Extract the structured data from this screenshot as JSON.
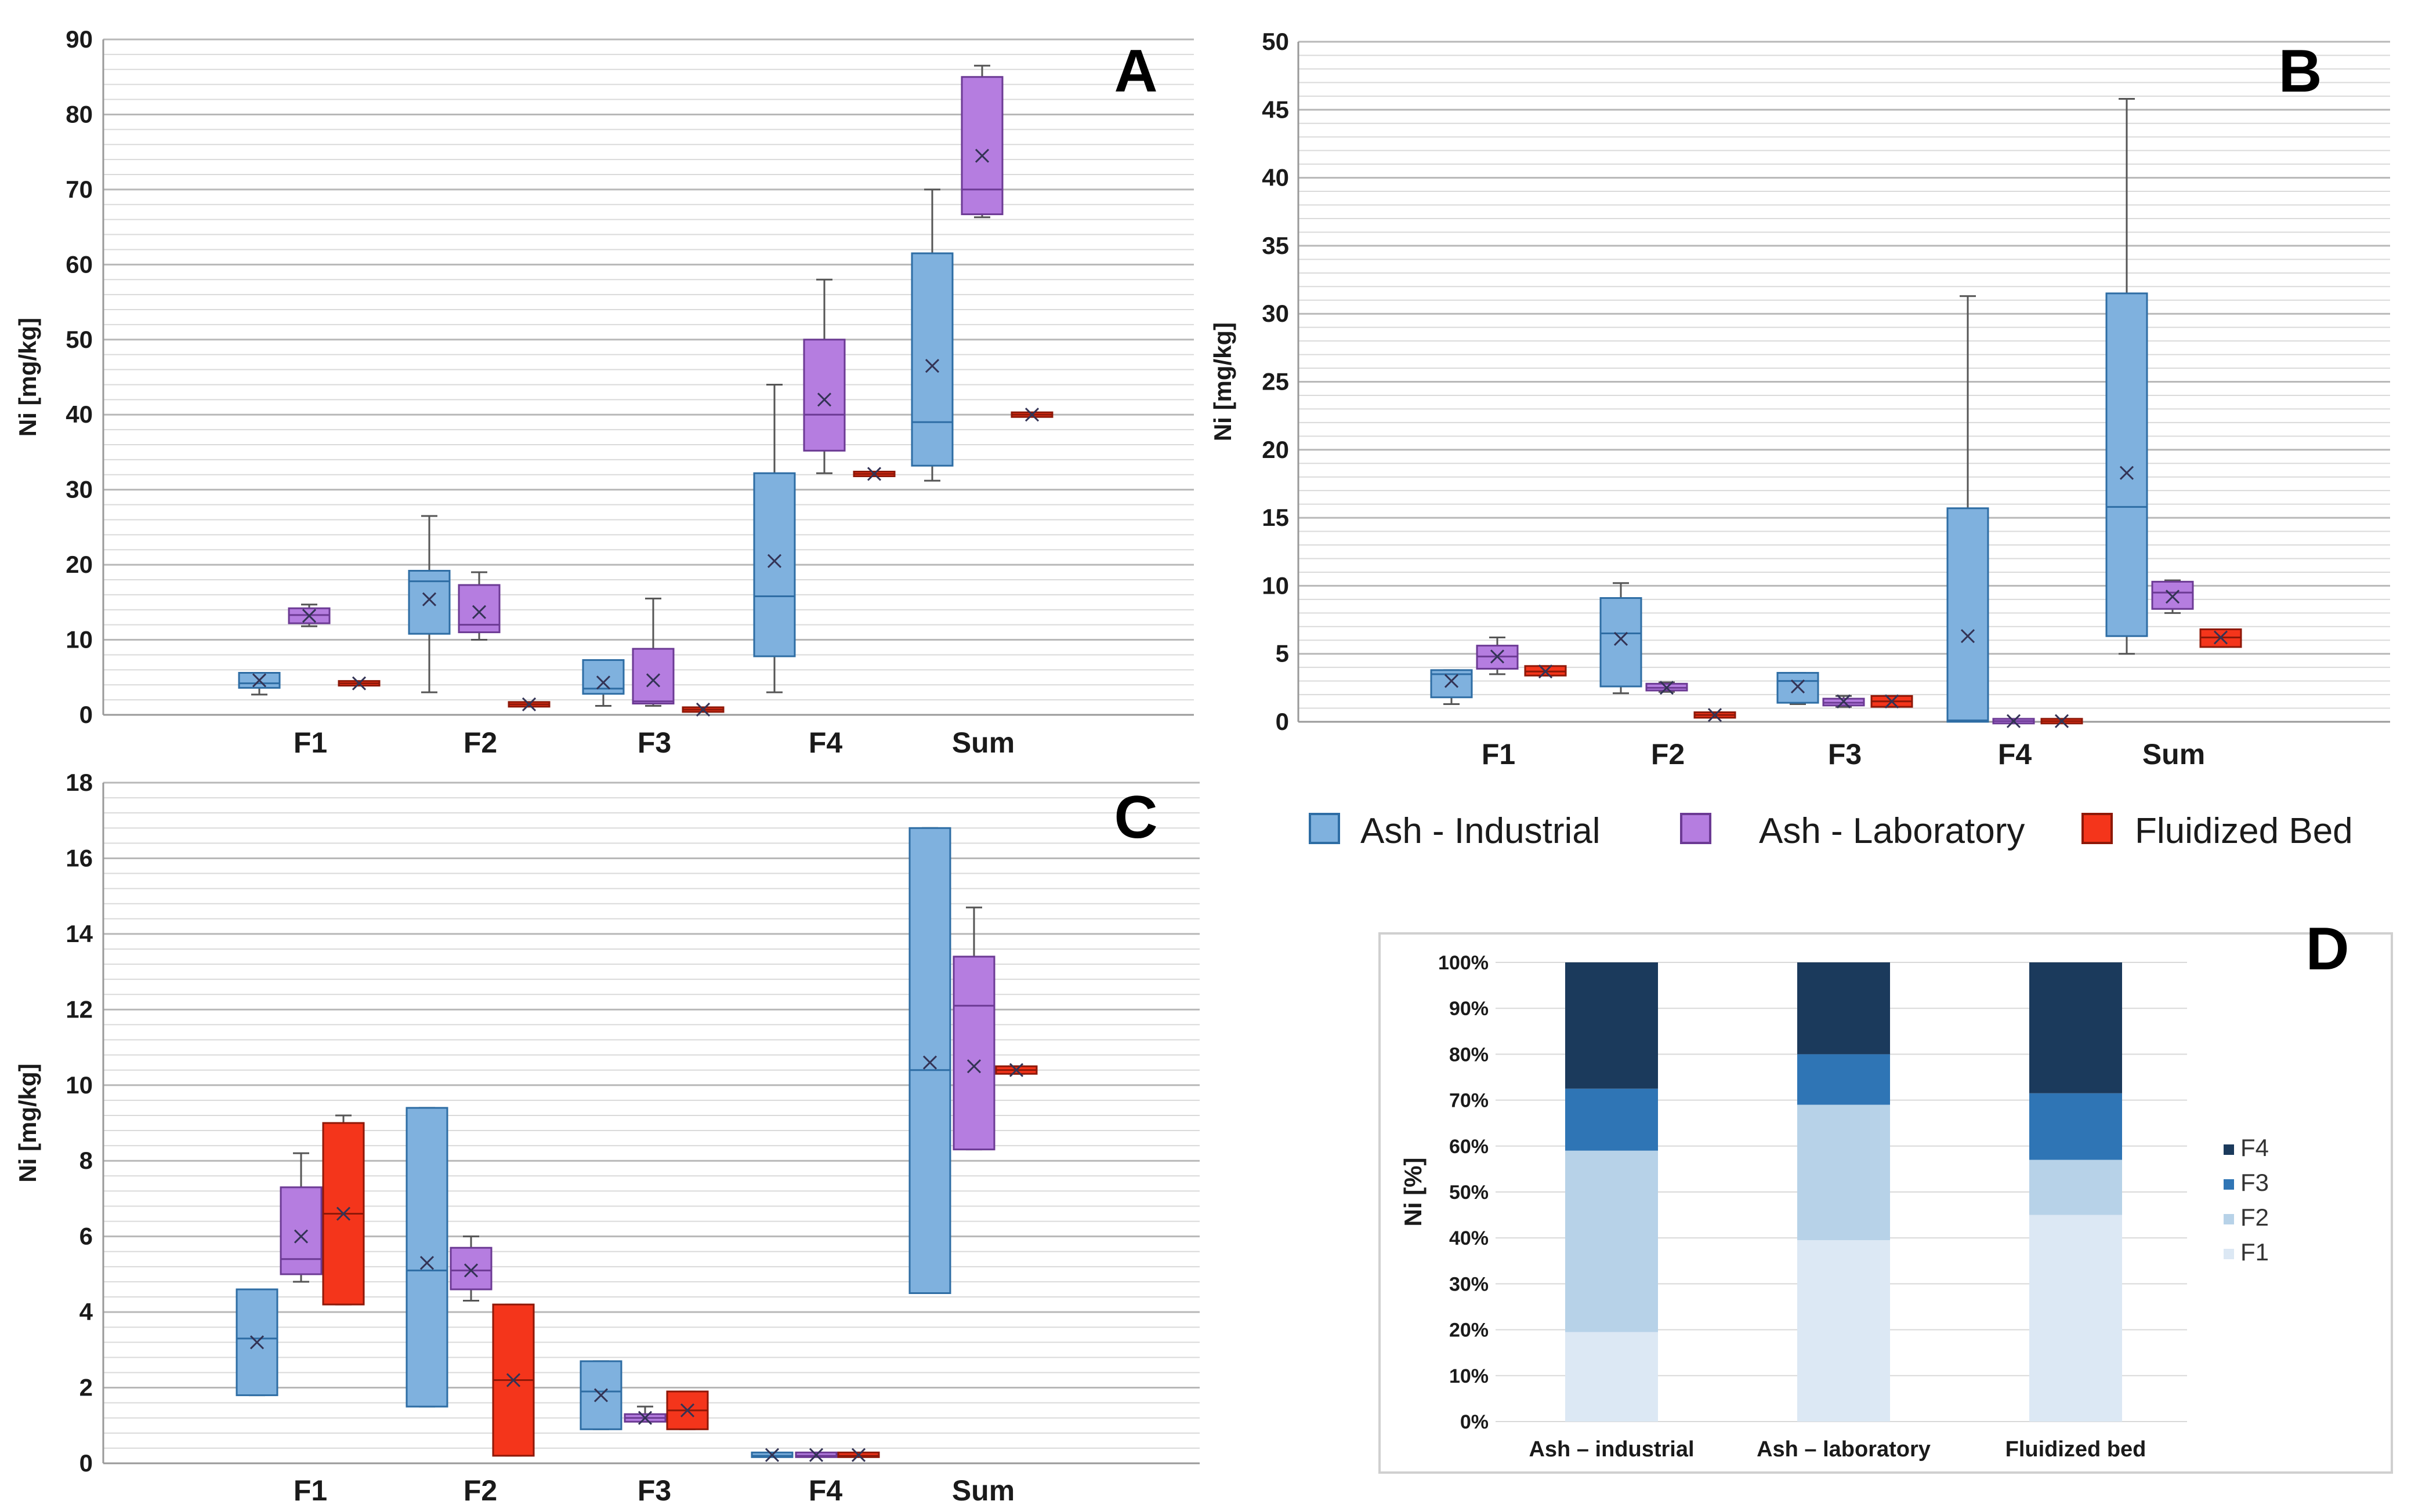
{
  "series_names": [
    "Ash - Industrial",
    "Ash - Laboratory",
    "Fluidized Bed"
  ],
  "colors": {
    "industrial_fill": "#7fb1de",
    "industrial_stroke": "#2e6da4",
    "laboratory_fill": "#b57de0",
    "laboratory_stroke": "#6c3a94",
    "fluidized_fill": "#f4351b",
    "fluidized_stroke": "#8e1808",
    "grid_major": "#b8b8b8",
    "grid_minor": "#dadada",
    "axis": "#999999",
    "f4": "#1b3a5c",
    "f3": "#2f75b5",
    "f2": "#b7d2e8",
    "f1": "#dce8f4"
  },
  "chart_data": [
    {
      "id": "A",
      "type": "box",
      "letter": "A",
      "ylabel": "Ni [mg/kg]",
      "ylim": [
        0,
        90
      ],
      "ymajor": 10,
      "yminor": 2,
      "categories": [
        "F1",
        "F2",
        "F3",
        "F4",
        "Sum"
      ],
      "series": [
        {
          "name": "Ash - Industrial",
          "boxes": [
            {
              "min": 2.7,
              "q1": 3.6,
              "median": 4.2,
              "q3": 5.6,
              "max": 5.6,
              "mean": 4.6
            },
            {
              "min": 3.0,
              "q1": 10.8,
              "median": 17.8,
              "q3": 19.2,
              "max": 26.5,
              "mean": 15.4
            },
            {
              "min": 1.2,
              "q1": 2.8,
              "median": 3.5,
              "q3": 7.3,
              "max": 7.3,
              "mean": 4.3
            },
            {
              "min": 3.0,
              "q1": 7.8,
              "median": 15.8,
              "q3": 32.2,
              "max": 44.0,
              "mean": 20.5
            },
            {
              "min": 31.2,
              "q1": 33.2,
              "median": 39.0,
              "q3": 61.5,
              "max": 70.0,
              "mean": 46.5
            }
          ]
        },
        {
          "name": "Ash - Laboratory",
          "boxes": [
            {
              "min": 11.8,
              "q1": 12.2,
              "median": 13.3,
              "q3": 14.2,
              "max": 14.7,
              "mean": 13.2
            },
            {
              "min": 10.0,
              "q1": 11.0,
              "median": 12.0,
              "q3": 17.3,
              "max": 19.0,
              "mean": 13.7
            },
            {
              "min": 1.2,
              "q1": 1.5,
              "median": 1.8,
              "q3": 8.8,
              "max": 15.5,
              "mean": 4.6
            },
            {
              "min": 32.2,
              "q1": 35.2,
              "median": 40.0,
              "q3": 50.0,
              "max": 58.0,
              "mean": 42.0
            },
            {
              "min": 66.3,
              "q1": 66.7,
              "median": 70.0,
              "q3": 85.0,
              "max": 86.5,
              "mean": 74.5
            }
          ]
        },
        {
          "name": "Fluidized Bed",
          "boxes": [
            {
              "min": 4.1,
              "q1": 4.1,
              "median": 4.2,
              "q3": 4.3,
              "max": 4.3,
              "mean": 4.2
            },
            {
              "min": 1.3,
              "q1": 1.3,
              "median": 1.4,
              "q3": 1.5,
              "max": 1.5,
              "mean": 1.4
            },
            {
              "min": 0.6,
              "q1": 0.6,
              "median": 0.7,
              "q3": 0.8,
              "max": 0.8,
              "mean": 0.7
            },
            {
              "min": 31.8,
              "q1": 31.9,
              "median": 32.1,
              "q3": 32.3,
              "max": 32.4,
              "mean": 32.1
            },
            {
              "min": 39.8,
              "q1": 39.9,
              "median": 40.0,
              "q3": 40.1,
              "max": 40.2,
              "mean": 40.0
            }
          ]
        }
      ]
    },
    {
      "id": "B",
      "type": "box",
      "letter": "B",
      "ylabel": "Ni [mg/kg]",
      "ylim": [
        0,
        50
      ],
      "ymajor": 5,
      "yminor": 1,
      "categories": [
        "F1",
        "F2",
        "F3",
        "F4",
        "Sum"
      ],
      "series": [
        {
          "name": "Ash - Industrial",
          "boxes": [
            {
              "min": 1.3,
              "q1": 1.8,
              "median": 3.5,
              "q3": 3.8,
              "max": 3.8,
              "mean": 3.0
            },
            {
              "min": 2.1,
              "q1": 2.6,
              "median": 6.5,
              "q3": 9.1,
              "max": 10.2,
              "mean": 6.1
            },
            {
              "min": 1.3,
              "q1": 1.4,
              "median": 3.0,
              "q3": 3.6,
              "max": 3.6,
              "mean": 2.6
            },
            {
              "min": 0.0,
              "q1": 0.0,
              "median": 0.1,
              "q3": 15.7,
              "max": 31.3,
              "mean": 6.3
            },
            {
              "min": 5.0,
              "q1": 6.3,
              "median": 15.8,
              "q3": 31.5,
              "max": 45.8,
              "mean": 18.3
            }
          ]
        },
        {
          "name": "Ash - Laboratory",
          "boxes": [
            {
              "min": 3.5,
              "q1": 3.9,
              "median": 4.8,
              "q3": 5.6,
              "max": 6.2,
              "mean": 4.8
            },
            {
              "min": 2.2,
              "q1": 2.3,
              "median": 2.5,
              "q3": 2.8,
              "max": 2.9,
              "mean": 2.5
            },
            {
              "min": 1.1,
              "q1": 1.2,
              "median": 1.4,
              "q3": 1.7,
              "max": 1.9,
              "mean": 1.5
            },
            {
              "min": 0.0,
              "q1": 0.0,
              "median": 0.05,
              "q3": 0.1,
              "max": 0.1,
              "mean": 0.05
            },
            {
              "min": 8.0,
              "q1": 8.3,
              "median": 9.5,
              "q3": 10.3,
              "max": 10.4,
              "mean": 9.2
            }
          ]
        },
        {
          "name": "Fluidized Bed",
          "boxes": [
            {
              "min": 3.4,
              "q1": 3.4,
              "median": 3.7,
              "q3": 4.1,
              "max": 4.1,
              "mean": 3.7
            },
            {
              "min": 0.3,
              "q1": 0.3,
              "median": 0.5,
              "q3": 0.7,
              "max": 0.7,
              "mean": 0.5
            },
            {
              "min": 1.1,
              "q1": 1.1,
              "median": 1.5,
              "q3": 1.9,
              "max": 1.9,
              "mean": 1.5
            },
            {
              "min": 0.0,
              "q1": 0.0,
              "median": 0.05,
              "q3": 0.1,
              "max": 0.1,
              "mean": 0.05
            },
            {
              "min": 5.5,
              "q1": 5.5,
              "median": 6.2,
              "q3": 6.8,
              "max": 6.8,
              "mean": 6.2
            }
          ]
        }
      ]
    },
    {
      "id": "C",
      "type": "box",
      "letter": "C",
      "ylabel": "Ni [mg/kg]",
      "ylim": [
        0,
        18
      ],
      "ymajor": 2,
      "yminor": 0.4,
      "categories": [
        "F1",
        "F2",
        "F3",
        "F4",
        "Sum"
      ],
      "series": [
        {
          "name": "Ash - Industrial",
          "boxes": [
            {
              "min": 1.8,
              "q1": 1.8,
              "median": 3.3,
              "q3": 4.6,
              "max": 4.6,
              "mean": 3.2
            },
            {
              "min": 1.5,
              "q1": 1.5,
              "median": 5.1,
              "q3": 9.4,
              "max": 9.4,
              "mean": 5.3
            },
            {
              "min": 0.9,
              "q1": 0.9,
              "median": 1.9,
              "q3": 2.7,
              "max": 2.7,
              "mean": 1.8
            },
            {
              "min": 0.2,
              "q1": 0.2,
              "median": 0.2,
              "q3": 0.25,
              "max": 0.25,
              "mean": 0.22
            },
            {
              "min": 4.5,
              "q1": 4.5,
              "median": 10.4,
              "q3": 16.8,
              "max": 16.8,
              "mean": 10.6
            }
          ]
        },
        {
          "name": "Ash - Laboratory",
          "boxes": [
            {
              "min": 4.8,
              "q1": 5.0,
              "median": 5.4,
              "q3": 7.3,
              "max": 8.2,
              "mean": 6.0
            },
            {
              "min": 4.3,
              "q1": 4.6,
              "median": 5.1,
              "q3": 5.7,
              "max": 6.0,
              "mean": 5.1
            },
            {
              "min": 1.1,
              "q1": 1.1,
              "median": 1.2,
              "q3": 1.3,
              "max": 1.5,
              "mean": 1.2
            },
            {
              "min": 0.2,
              "q1": 0.2,
              "median": 0.2,
              "q3": 0.25,
              "max": 0.25,
              "mean": 0.22
            },
            {
              "min": 8.3,
              "q1": 8.3,
              "median": 12.1,
              "q3": 13.4,
              "max": 14.7,
              "mean": 10.5
            }
          ]
        },
        {
          "name": "Fluidized Bed",
          "boxes": [
            {
              "min": 4.2,
              "q1": 4.2,
              "median": 6.6,
              "q3": 9.0,
              "max": 9.2,
              "mean": 6.6
            },
            {
              "min": 0.2,
              "q1": 0.2,
              "median": 2.2,
              "q3": 4.2,
              "max": 4.2,
              "mean": 2.2
            },
            {
              "min": 0.9,
              "q1": 0.9,
              "median": 1.4,
              "q3": 1.9,
              "max": 1.9,
              "mean": 1.4
            },
            {
              "min": 0.2,
              "q1": 0.2,
              "median": 0.2,
              "q3": 0.25,
              "max": 0.25,
              "mean": 0.22
            },
            {
              "min": 10.3,
              "q1": 10.3,
              "median": 10.4,
              "q3": 10.5,
              "max": 10.5,
              "mean": 10.4
            }
          ]
        }
      ]
    },
    {
      "id": "D",
      "type": "stacked-bar",
      "letter": "D",
      "ylabel": "Ni [%]",
      "ylim": [
        0,
        100
      ],
      "yticks": [
        "0%",
        "10%",
        "20%",
        "30%",
        "40%",
        "50%",
        "60%",
        "70%",
        "80%",
        "90%",
        "100%"
      ],
      "categories": [
        "Ash – industrial",
        "Ash – laboratory",
        "Fluidized bed"
      ],
      "series": [
        {
          "name": "F1",
          "values": [
            19.5,
            39.5,
            45.0
          ]
        },
        {
          "name": "F2",
          "values": [
            39.5,
            29.5,
            12.0
          ]
        },
        {
          "name": "F3",
          "values": [
            13.5,
            11.0,
            14.5
          ]
        },
        {
          "name": "F4",
          "values": [
            27.5,
            20.0,
            28.5
          ]
        }
      ],
      "legend": [
        "F4",
        "F3",
        "F2",
        "F1"
      ]
    }
  ]
}
